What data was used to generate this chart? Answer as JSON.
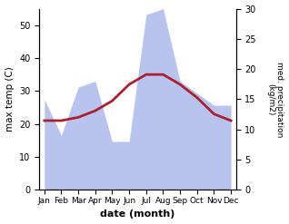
{
  "months": [
    "Jan",
    "Feb",
    "Mar",
    "Apr",
    "May",
    "Jun",
    "Jul",
    "Aug",
    "Sep",
    "Oct",
    "Nov",
    "Dec"
  ],
  "temp": [
    21,
    21,
    22,
    24,
    27,
    32,
    35,
    35,
    32,
    28,
    23,
    21
  ],
  "precip": [
    15,
    9,
    17,
    18,
    8,
    8,
    29,
    30,
    18,
    16,
    14,
    14
  ],
  "temp_color": "#aa2030",
  "precip_fill_color": "#b8c4ee",
  "xlabel": "date (month)",
  "ylabel_left": "max temp (C)",
  "ylabel_right": "med. precipitation\n(kg/m2)",
  "ylim_left": [
    0,
    55
  ],
  "ylim_right": [
    0,
    30
  ],
  "yticks_left": [
    0,
    10,
    20,
    30,
    40,
    50
  ],
  "yticks_right": [
    0,
    5,
    10,
    15,
    20,
    25,
    30
  ],
  "bg_color": "#ffffff"
}
